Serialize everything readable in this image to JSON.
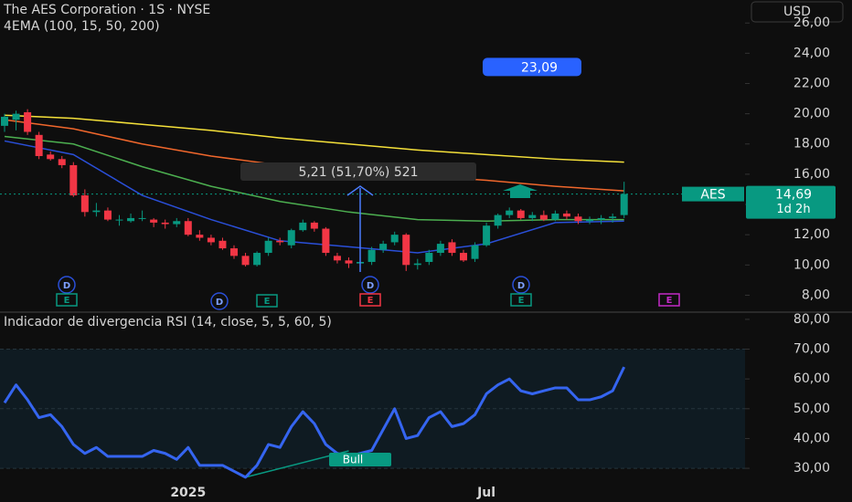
{
  "chart_data": [
    {
      "type": "candlestick",
      "title": "The AES Corporation · 1S · NYSE",
      "subtitle": "4EMA (100, 15, 50, 200)",
      "currency": "USD",
      "open": [
        19.2,
        19.6,
        20.1,
        18.6,
        17.3,
        17.0,
        16.6,
        14.6,
        13.5,
        13.6,
        13.0,
        12.9,
        13.1,
        13.0,
        12.8,
        12.7,
        12.9,
        12.0,
        11.8,
        11.6,
        11.1,
        10.6,
        10.0,
        10.8,
        11.6,
        11.3,
        12.3,
        12.8,
        12.4,
        10.6,
        10.3,
        10.1,
        10.2,
        11.0,
        11.5,
        12.0,
        10.0,
        10.2,
        10.8,
        11.5,
        10.8,
        10.4,
        11.3,
        12.6,
        13.3,
        13.6,
        13.1,
        13.3,
        13.0,
        13.4,
        13.2,
        12.9,
        13.0,
        13.1,
        13.3
      ],
      "high": [
        20.0,
        20.2,
        20.3,
        18.8,
        17.5,
        17.2,
        16.8,
        15.0,
        14.1,
        13.8,
        13.3,
        13.4,
        13.6,
        13.1,
        13.0,
        13.1,
        13.1,
        12.3,
        12.0,
        11.8,
        11.3,
        10.8,
        10.9,
        11.8,
        11.8,
        12.4,
        13.0,
        12.9,
        12.5,
        10.8,
        10.5,
        10.5,
        11.2,
        11.6,
        12.2,
        12.1,
        10.4,
        11.0,
        11.6,
        11.7,
        11.0,
        11.5,
        12.8,
        13.4,
        13.8,
        13.7,
        13.5,
        13.6,
        13.6,
        13.6,
        13.4,
        13.2,
        13.3,
        13.4,
        15.5
      ],
      "low": [
        18.8,
        18.9,
        18.6,
        17.0,
        16.9,
        16.4,
        14.5,
        13.2,
        13.2,
        12.9,
        12.6,
        12.8,
        12.9,
        12.5,
        12.4,
        12.5,
        11.9,
        11.6,
        11.3,
        11.0,
        10.4,
        9.9,
        9.9,
        10.6,
        11.3,
        11.1,
        12.2,
        12.2,
        10.6,
        10.1,
        9.8,
        9.6,
        10.0,
        10.8,
        11.3,
        9.6,
        9.7,
        10.0,
        10.6,
        10.6,
        10.2,
        10.2,
        11.2,
        12.4,
        13.1,
        13.0,
        12.9,
        12.9,
        12.9,
        13.0,
        12.7,
        12.7,
        12.7,
        12.8,
        13.1
      ],
      "close": [
        19.8,
        20.0,
        18.8,
        17.2,
        17.0,
        16.6,
        14.6,
        13.5,
        13.6,
        13.0,
        13.0,
        13.1,
        13.1,
        12.8,
        12.7,
        12.9,
        12.0,
        11.8,
        11.5,
        11.1,
        10.6,
        10.0,
        10.8,
        11.6,
        11.5,
        12.3,
        12.8,
        12.4,
        10.8,
        10.3,
        10.1,
        10.2,
        11.0,
        11.4,
        12.0,
        10.0,
        10.1,
        10.8,
        11.4,
        10.8,
        10.3,
        11.3,
        12.6,
        13.3,
        13.6,
        13.1,
        13.3,
        13.0,
        13.4,
        13.2,
        12.9,
        13.0,
        13.1,
        13.2,
        14.69
      ],
      "up_color": "#089981",
      "down_color": "#f23645",
      "series": [
        {
          "color": "#f5e13a",
          "x": [
            0,
            6,
            12,
            18,
            24,
            30,
            36,
            42,
            48,
            54
          ],
          "values": [
            19.9,
            19.7,
            19.3,
            18.9,
            18.4,
            18.0,
            17.6,
            17.3,
            17.0,
            16.8
          ]
        },
        {
          "color": "#f0672c",
          "x": [
            0,
            6,
            12,
            18,
            24,
            30,
            36,
            42,
            48,
            54
          ],
          "values": [
            19.6,
            19.0,
            18.0,
            17.2,
            16.6,
            16.2,
            15.9,
            15.6,
            15.2,
            14.9
          ]
        },
        {
          "color": "#4caf50",
          "x": [
            0,
            6,
            12,
            18,
            24,
            30,
            36,
            42,
            48,
            54
          ],
          "values": [
            18.5,
            18.0,
            16.5,
            15.2,
            14.2,
            13.5,
            13.0,
            12.9,
            13.0,
            13.0
          ]
        },
        {
          "color": "#2a4fd8",
          "x": [
            0,
            6,
            12,
            18,
            24,
            30,
            36,
            42,
            48,
            54
          ],
          "values": [
            18.2,
            17.3,
            14.6,
            13.0,
            11.6,
            11.2,
            10.8,
            11.4,
            12.8,
            12.9
          ]
        }
      ],
      "ylim": [
        7.0,
        27.4
      ],
      "yticks": [
        {
          "value": 8,
          "label": "8,00"
        },
        {
          "value": 10,
          "label": "10,00"
        },
        {
          "value": 12,
          "label": "12,00"
        },
        {
          "value": 14,
          "label": "14,00"
        },
        {
          "value": 16,
          "label": "16,00"
        },
        {
          "value": 18,
          "label": "18,00"
        },
        {
          "value": 20,
          "label": "20,00"
        },
        {
          "value": 22,
          "label": "22,00"
        },
        {
          "value": 24,
          "label": "24,00"
        },
        {
          "value": 26,
          "label": "26,00"
        }
      ],
      "symbol_tag": "AES",
      "last_price": {
        "value": 14.69,
        "label": "14,69"
      },
      "countdown": "1d 2h",
      "price_alert": {
        "value": 23.09,
        "label": "23,09"
      },
      "measure_label": "5,21 (51,70%) 521",
      "events": [
        "D",
        "E",
        "D",
        "E",
        "D",
        "E",
        "D",
        "E",
        "E"
      ]
    },
    {
      "type": "line",
      "title": "Indicador de divergencia RSI (14, close, 5, 5, 60, 5)",
      "categories": [
        null,
        null,
        null,
        null,
        null,
        null,
        null,
        null,
        null,
        null,
        null,
        null,
        null,
        null,
        null,
        null,
        "2025",
        null,
        null,
        null,
        null,
        null,
        null,
        null,
        null,
        null,
        null,
        null,
        null,
        null,
        null,
        null,
        null,
        null,
        null,
        null,
        null,
        null,
        null,
        null,
        null,
        null,
        "Jul",
        null,
        null,
        null,
        null,
        null,
        null,
        null,
        null,
        null,
        null,
        null,
        null
      ],
      "series": [
        {
          "color": "#3565f0",
          "values": [
            52,
            58,
            53,
            47,
            48,
            44,
            38,
            35,
            37,
            34,
            34,
            34,
            34,
            36,
            35,
            33,
            37,
            31,
            31,
            31,
            29,
            27,
            31,
            38,
            37,
            44,
            49,
            45,
            38,
            35,
            34,
            35,
            36,
            43,
            50,
            40,
            41,
            47,
            49,
            44,
            45,
            48,
            55,
            58,
            60,
            56,
            55,
            56,
            57,
            57,
            53,
            53,
            54,
            56,
            64
          ]
        }
      ],
      "band": [
        30,
        70
      ],
      "ylim": [
        19.3,
        81.5
      ],
      "yticks": [
        {
          "value": 30,
          "label": "30,00"
        },
        {
          "value": 40,
          "label": "40,00"
        },
        {
          "value": 50,
          "label": "50,00"
        },
        {
          "value": 60,
          "label": "60,00"
        },
        {
          "value": 70,
          "label": "70,00"
        },
        {
          "value": 80,
          "label": "80,00"
        }
      ],
      "annotation": "Bull"
    }
  ]
}
